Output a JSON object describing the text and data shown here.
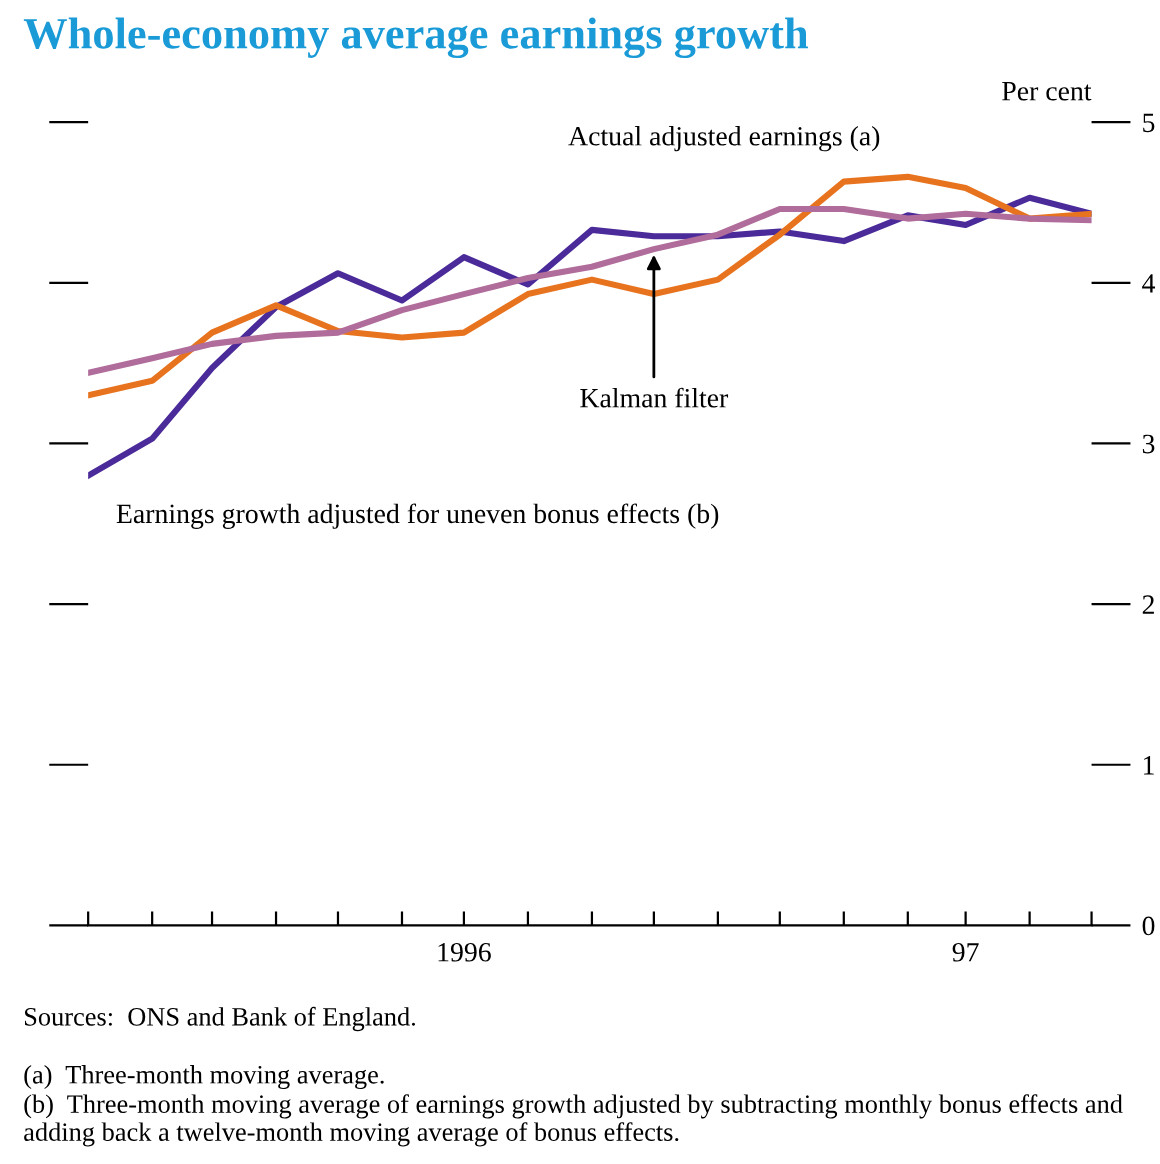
{
  "chart_data": {
    "type": "line",
    "title": "Whole-economy average earnings growth",
    "ylabel": "Per cent",
    "x": [
      "1996-01",
      "1996-02",
      "1996-03",
      "1996-04",
      "1996-05",
      "1996-06",
      "1996-07",
      "1996-08",
      "1996-09",
      "1996-10",
      "1996-11",
      "1996-12",
      "1997-01",
      "1997-02",
      "1997-03",
      "1997-04",
      "1997-05"
    ],
    "series": [
      {
        "name": "Earnings growth adjusted for uneven bonus effects (b)",
        "color": "#4b2a9a",
        "values": [
          2.8,
          3.03,
          3.47,
          3.85,
          4.06,
          3.89,
          4.16,
          3.99,
          4.33,
          4.29,
          4.29,
          4.32,
          4.26,
          4.42,
          4.36,
          4.53,
          4.43
        ]
      },
      {
        "name": "Actual adjusted earnings (a)",
        "color": "#e8731e",
        "values": [
          3.3,
          3.39,
          3.69,
          3.86,
          3.7,
          3.66,
          3.69,
          3.93,
          4.02,
          3.93,
          4.02,
          4.3,
          4.63,
          4.66,
          4.59,
          4.4,
          4.43
        ]
      },
      {
        "name": "Kalman filter",
        "color": "#b06c9a",
        "values": [
          3.44,
          3.53,
          3.62,
          3.67,
          3.69,
          3.83,
          3.93,
          4.03,
          4.1,
          4.21,
          4.3,
          4.46,
          4.46,
          4.4,
          4.43,
          4.4,
          4.39
        ]
      }
    ],
    "xlim": [
      "1996-01",
      "1997-05"
    ],
    "xticks": [
      {
        "value": "1996-01",
        "label": null
      },
      {
        "value": "1996-02",
        "label": null
      },
      {
        "value": "1996-03",
        "label": null
      },
      {
        "value": "1996-04",
        "label": null
      },
      {
        "value": "1996-05",
        "label": null
      },
      {
        "value": "1996-06",
        "label": null
      },
      {
        "value": "1996-07",
        "label": "1996"
      },
      {
        "value": "1996-08",
        "label": null
      },
      {
        "value": "1996-09",
        "label": null
      },
      {
        "value": "1996-10",
        "label": null
      },
      {
        "value": "1996-11",
        "label": null
      },
      {
        "value": "1996-12",
        "label": null
      },
      {
        "value": "1997-01",
        "label": null
      },
      {
        "value": "1997-02",
        "label": null
      },
      {
        "value": "1997-03",
        "label": "97"
      },
      {
        "value": "1997-04",
        "label": null
      },
      {
        "value": "1997-05",
        "label": null
      }
    ],
    "ylim": [
      0,
      5
    ],
    "yticks": [
      0,
      1,
      2,
      3,
      4,
      5
    ],
    "grid": false,
    "legend": false,
    "marker": "none",
    "line_style": "solid",
    "annotations": [
      "Sources:  ONS and Bank of England.",
      "(a)  Three-month moving average.",
      "(b)  Three-month moving average of earnings growth adjusted by subtracting monthly bonus effects and adding back a twelve-month moving average of bonus effects."
    ]
  }
}
